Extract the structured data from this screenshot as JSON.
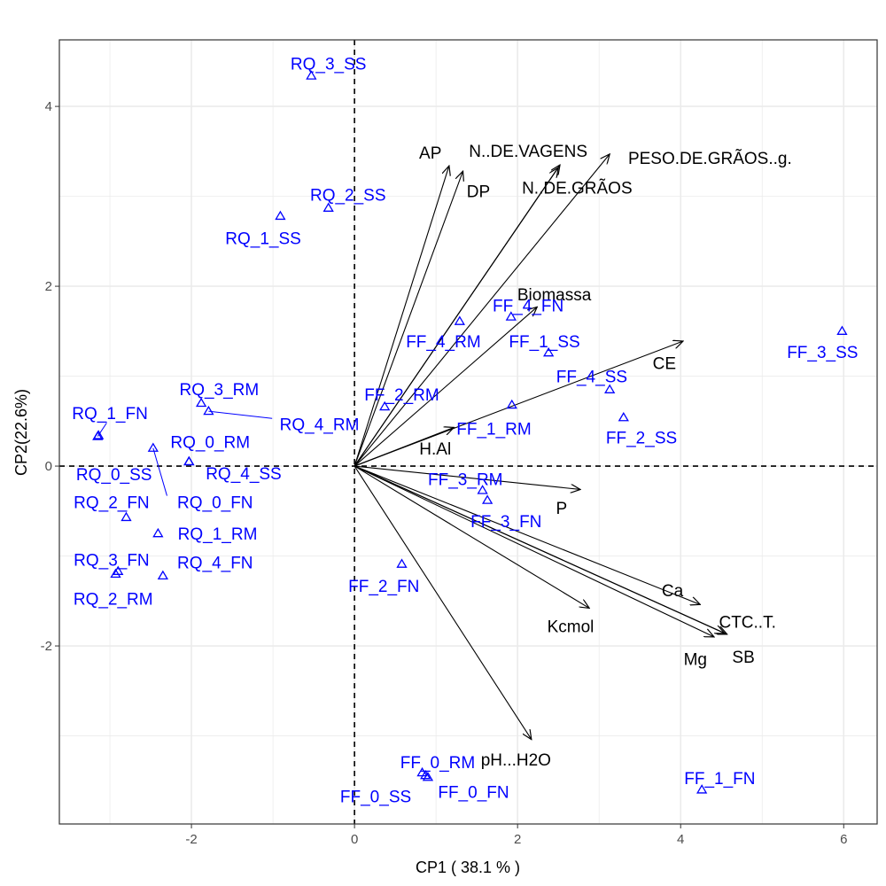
{
  "chart_data": {
    "type": "scatter",
    "subtype": "pca-biplot",
    "xlabel": "CP1 ( 38.1 % )",
    "ylabel": "CP2(22.6%)",
    "xlim": [
      -3.62,
      6.41
    ],
    "ylim": [
      -3.98,
      4.74
    ],
    "xticks": [
      -2,
      0,
      2,
      4,
      6
    ],
    "yticks": [
      -2,
      0,
      2,
      4
    ],
    "xtick_labels": [
      "-2",
      "0",
      "2",
      "4",
      "6"
    ],
    "ytick_labels": [
      "-2",
      "0",
      "2",
      "4"
    ],
    "grid": true,
    "colors": {
      "points": "#0000ff",
      "arrows": "#000000",
      "grid": "#ebebeb",
      "refline": "#000000"
    },
    "points": [
      {
        "label": "RQ_3_SS",
        "x": -0.53,
        "y": 4.34,
        "lx": -0.32,
        "ly": 4.48
      },
      {
        "label": "RQ_2_SS",
        "x": -0.32,
        "y": 2.87,
        "lx": -0.08,
        "ly": 3.02
      },
      {
        "label": "RQ_1_SS",
        "x": -0.91,
        "y": 2.78,
        "lx": -1.12,
        "ly": 2.54
      },
      {
        "label": "FF_4_FN",
        "x": 1.92,
        "y": 1.66,
        "lx": 2.13,
        "ly": 1.79
      },
      {
        "label": "FF_4_RM",
        "x": 1.29,
        "y": 1.61,
        "lx": 1.09,
        "ly": 1.39
      },
      {
        "label": "FF_1_SS",
        "x": 2.38,
        "y": 1.26,
        "lx": 2.33,
        "ly": 1.39
      },
      {
        "label": "FF_3_SS",
        "x": 5.98,
        "y": 1.5,
        "lx": 5.74,
        "ly": 1.27
      },
      {
        "label": "FF_4_SS",
        "x": 3.13,
        "y": 0.85,
        "lx": 2.91,
        "ly": 1.0
      },
      {
        "label": "FF_2_RM",
        "x": 0.37,
        "y": 0.66,
        "lx": 0.58,
        "ly": 0.8
      },
      {
        "label": "FF_1_RM",
        "x": 1.93,
        "y": 0.68,
        "lx": 1.71,
        "ly": 0.42
      },
      {
        "label": "FF_2_SS",
        "x": 3.3,
        "y": 0.54,
        "lx": 3.52,
        "ly": 0.32
      },
      {
        "label": "RQ_3_RM",
        "x": -1.88,
        "y": 0.7,
        "lx": -1.66,
        "ly": 0.86
      },
      {
        "label": "RQ_4_RM",
        "x": -1.79,
        "y": 0.61,
        "lx": -0.43,
        "ly": 0.47,
        "leader_end": [
          -1.01,
          0.53
        ]
      },
      {
        "label": "RQ_1_FN",
        "x": -3.15,
        "y": 0.33,
        "lx": -3.0,
        "ly": 0.59,
        "leader_end": [
          -3.04,
          0.48
        ]
      },
      {
        "label": "RQ_0_SS",
        "x": -3.14,
        "y": 0.34,
        "lx": -2.95,
        "ly": -0.09
      },
      {
        "label": "RQ_0_FN",
        "x": -2.47,
        "y": 0.2,
        "lx": -1.71,
        "ly": -0.4,
        "leader_end": [
          -2.3,
          -0.33
        ]
      },
      {
        "label": "RQ_0_RM",
        "x": -2.03,
        "y": 0.05,
        "lx": -1.77,
        "ly": 0.27
      },
      {
        "label": "RQ_4_SS",
        "x": -2.03,
        "y": 0.05,
        "lx": -1.36,
        "ly": -0.08
      },
      {
        "label": "RQ_2_FN",
        "x": -2.8,
        "y": -0.57,
        "lx": -2.98,
        "ly": -0.4
      },
      {
        "label": "RQ_1_RM",
        "x": -2.41,
        "y": -0.75,
        "lx": -1.68,
        "ly": -0.75
      },
      {
        "label": "RQ_3_FN",
        "x": -2.9,
        "y": -1.17,
        "lx": -2.98,
        "ly": -1.04
      },
      {
        "label": "RQ_2_RM",
        "x": -2.93,
        "y": -1.2,
        "lx": -2.96,
        "ly": -1.47
      },
      {
        "label": "RQ_4_FN",
        "x": -2.35,
        "y": -1.22,
        "lx": -1.71,
        "ly": -1.07
      },
      {
        "label": "FF_3_RM",
        "x": 1.57,
        "y": -0.27,
        "lx": 1.36,
        "ly": -0.14
      },
      {
        "label": "FF_3_FN",
        "x": 1.63,
        "y": -0.38,
        "lx": 1.86,
        "ly": -0.61
      },
      {
        "label": "FF_2_FN",
        "x": 0.58,
        "y": -1.09,
        "lx": 0.36,
        "ly": -1.33
      },
      {
        "label": "FF_0_RM",
        "x": 0.87,
        "y": -3.44,
        "lx": 1.02,
        "ly": -3.29
      },
      {
        "label": "FF_0_SS",
        "x": 0.83,
        "y": -3.41,
        "lx": 0.26,
        "ly": -3.67
      },
      {
        "label": "FF_0_FN",
        "x": 0.9,
        "y": -3.46,
        "lx": 1.46,
        "ly": -3.62
      },
      {
        "label": "FF_1_FN",
        "x": 4.26,
        "y": -3.6,
        "lx": 4.48,
        "ly": -3.47
      }
    ],
    "arrows": [
      {
        "label": "AP",
        "x": 1.16,
        "y": 3.34,
        "lx": 0.93,
        "ly": 3.49
      },
      {
        "label": "DP",
        "x": 1.33,
        "y": 3.28,
        "lx": 1.52,
        "ly": 3.06
      },
      {
        "label": "N..DE.VAGENS",
        "x": 2.52,
        "y": 3.35,
        "lx": 2.13,
        "ly": 3.51
      },
      {
        "label": "PESO.DE.GRÃOS..g.",
        "x": 3.13,
        "y": 3.47,
        "lx": 4.36,
        "ly": 3.43
      },
      {
        "label": "N..DE.GRÃOS",
        "x": 2.5,
        "y": 3.32,
        "lx": 2.73,
        "ly": 3.1
      },
      {
        "label": "Biomassa",
        "x": 2.24,
        "y": 1.77,
        "lx": 2.45,
        "ly": 1.91
      },
      {
        "label": "CE",
        "x": 4.03,
        "y": 1.39,
        "lx": 3.8,
        "ly": 1.15
      },
      {
        "label": "H.Al",
        "x": 1.22,
        "y": 0.43,
        "lx": 0.99,
        "ly": 0.2
      },
      {
        "label": "P",
        "x": 2.77,
        "y": -0.26,
        "lx": 2.54,
        "ly": -0.46
      },
      {
        "label": "Ca",
        "x": 4.24,
        "y": -1.54,
        "lx": 3.9,
        "ly": -1.38
      },
      {
        "label": "CTC..T.",
        "x": 4.57,
        "y": -1.87,
        "lx": 4.82,
        "ly": -1.73
      },
      {
        "label": "SB",
        "x": 4.54,
        "y": -1.86,
        "lx": 4.77,
        "ly": -2.12
      },
      {
        "label": "Mg",
        "x": 4.41,
        "y": -1.9,
        "lx": 4.18,
        "ly": -2.14
      },
      {
        "label": "Kcmol",
        "x": 2.88,
        "y": -1.58,
        "lx": 2.65,
        "ly": -1.78
      },
      {
        "label": "pH...H2O",
        "x": 2.17,
        "y": -3.04,
        "lx": 1.98,
        "ly": -3.26
      }
    ]
  }
}
